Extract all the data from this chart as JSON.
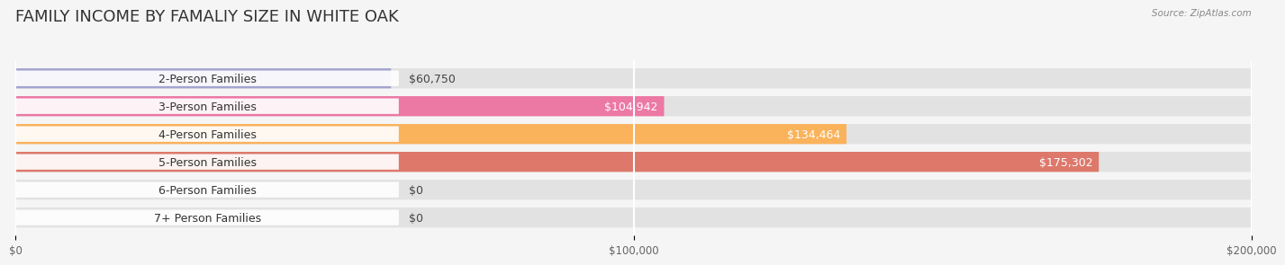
{
  "title": "FAMILY INCOME BY FAMALIY SIZE IN WHITE OAK",
  "source": "Source: ZipAtlas.com",
  "categories": [
    "2-Person Families",
    "3-Person Families",
    "4-Person Families",
    "5-Person Families",
    "6-Person Families",
    "7+ Person Families"
  ],
  "values": [
    60750,
    104942,
    134464,
    175302,
    0,
    0
  ],
  "bar_colors": [
    "#9999cc",
    "#ee6699",
    "#ffaa44",
    "#dd6655",
    "#88aadd",
    "#bb99cc"
  ],
  "label_colors": [
    "#333333",
    "#333333",
    "#ffffff",
    "#ffffff",
    "#333333",
    "#333333"
  ],
  "background_color": "#f5f5f5",
  "bar_bg_color": "#e2e2e2",
  "xlim": [
    0,
    200000
  ],
  "xticks": [
    0,
    100000,
    200000
  ],
  "xtick_labels": [
    "$0",
    "$100,000",
    "$200,000"
  ],
  "title_fontsize": 13,
  "label_fontsize": 9,
  "value_labels": [
    "$60,750",
    "$104,942",
    "$134,464",
    "$175,302",
    "$0",
    "$0"
  ]
}
